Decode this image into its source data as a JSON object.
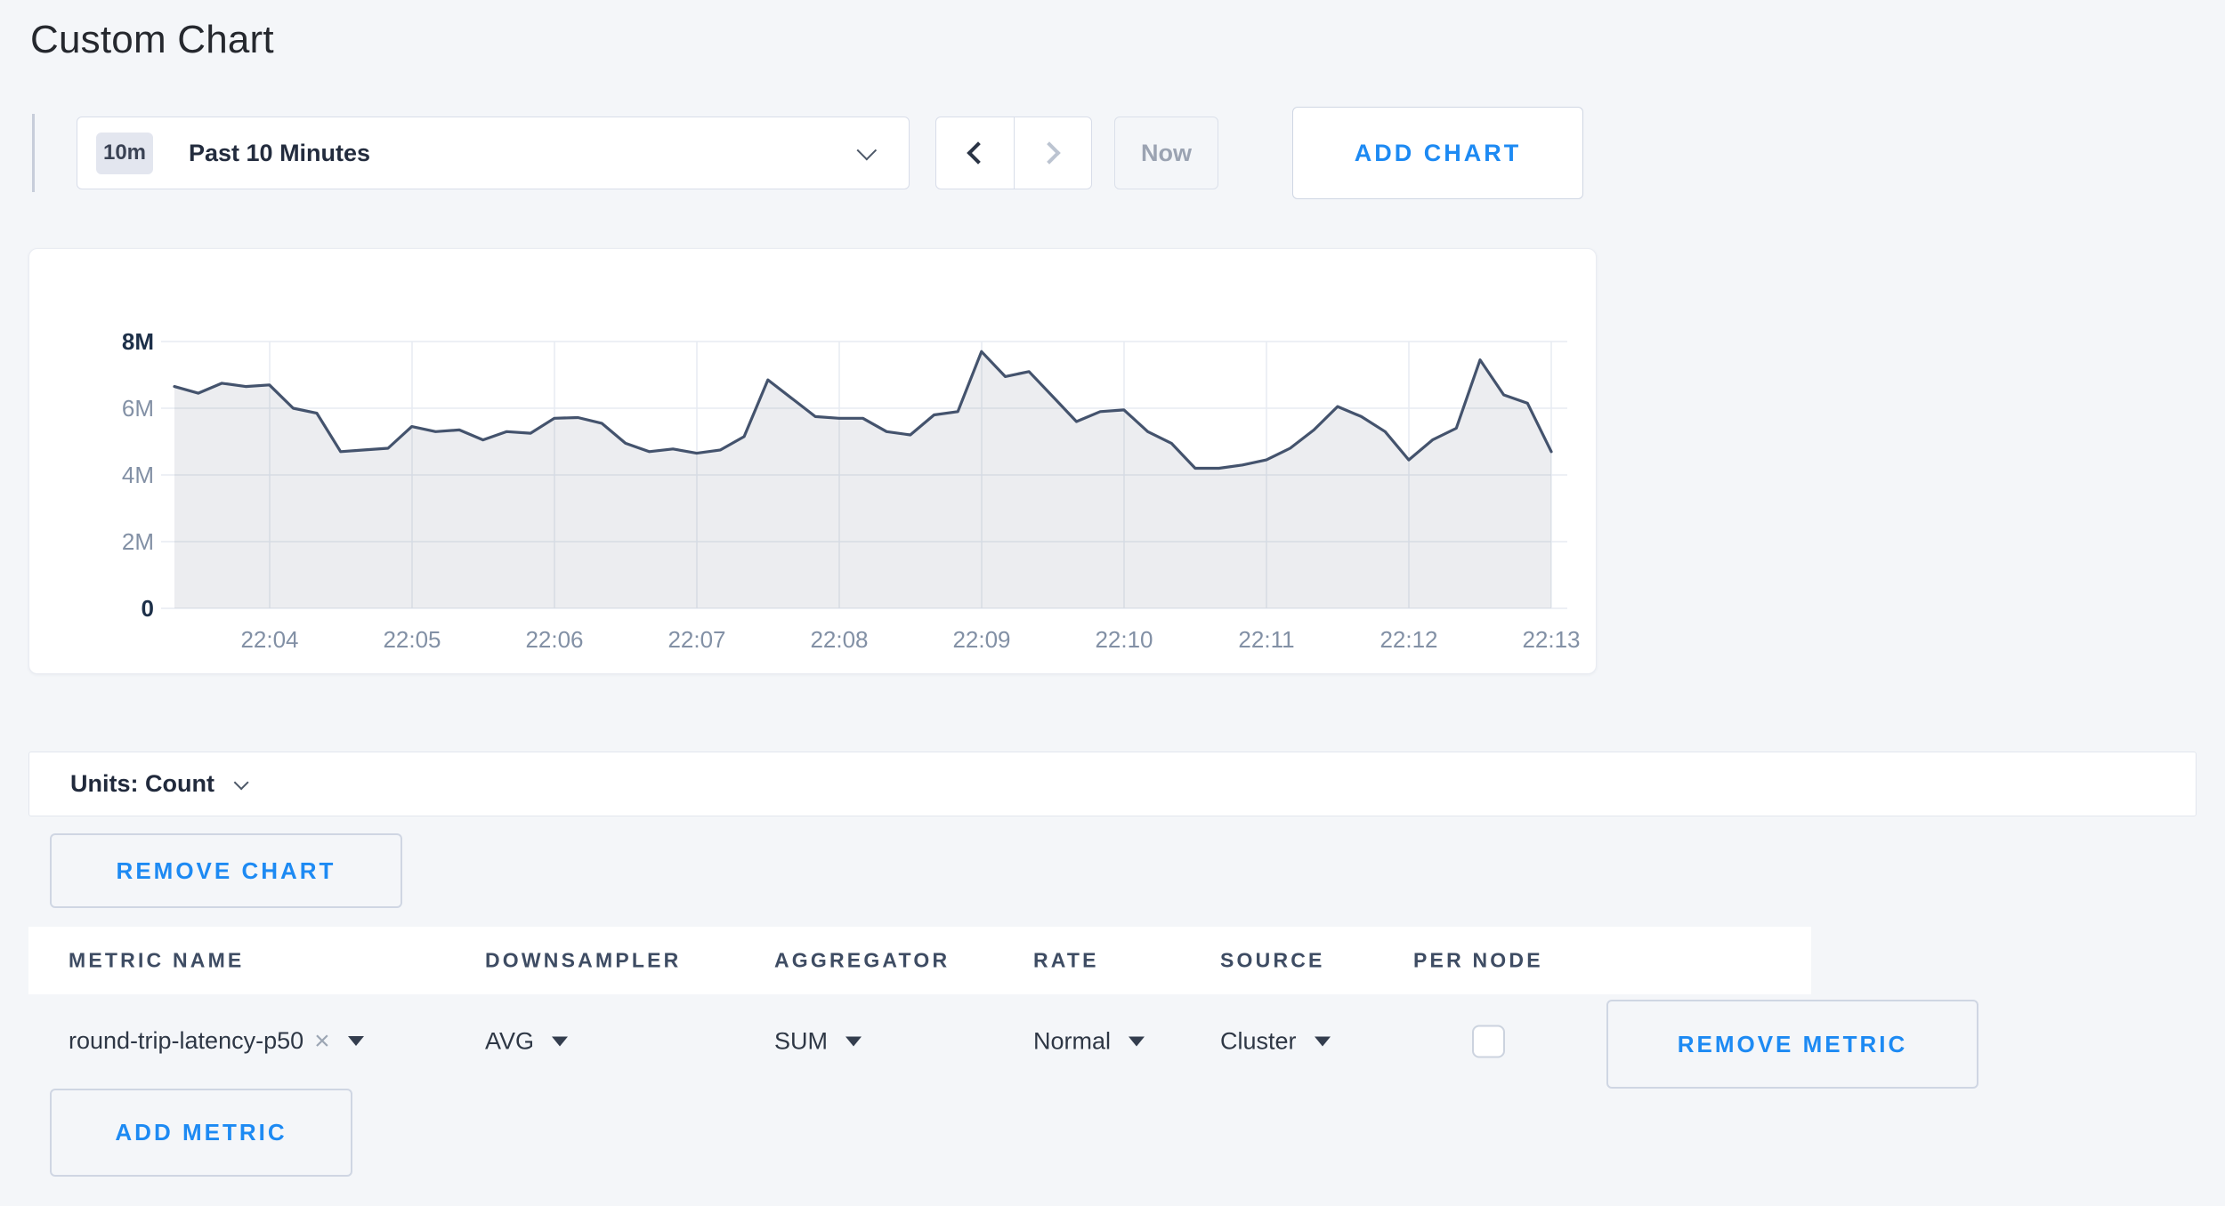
{
  "app": {
    "title": "Custom Chart"
  },
  "toolbar": {
    "time_range_badge": "10m",
    "time_range_label": "Past 10 Minutes",
    "prev_button_icon": "chevron-left",
    "next_button_icon": "chevron-right",
    "now_button_label": "Now",
    "add_chart_label": "ADD CHART"
  },
  "chart_data": {
    "type": "area",
    "series_name": "round-trip-latency-p50",
    "title": "",
    "xlabel": "",
    "ylabel": "Count",
    "ylim": [
      0,
      8000000
    ],
    "grid": true,
    "legend": "none",
    "line_color": "#44536d",
    "fill_color": "rgba(68,83,109,0.10)",
    "axis_label_color": "#8290a5",
    "axis_label_strong_color": "#1d3049",
    "y_ticks": [
      "0",
      "2M",
      "4M",
      "6M",
      "8M"
    ],
    "x_ticks": [
      "22:04",
      "22:05",
      "22:06",
      "22:07",
      "22:08",
      "22:09",
      "22:10",
      "22:11",
      "22:12",
      "22:13"
    ],
    "x": [
      "22:03:20",
      "22:03:30",
      "22:03:40",
      "22:03:50",
      "22:04:00",
      "22:04:10",
      "22:04:20",
      "22:04:30",
      "22:04:40",
      "22:04:50",
      "22:05:00",
      "22:05:10",
      "22:05:20",
      "22:05:30",
      "22:05:40",
      "22:05:50",
      "22:06:00",
      "22:06:10",
      "22:06:20",
      "22:06:30",
      "22:06:40",
      "22:06:50",
      "22:07:00",
      "22:07:10",
      "22:07:20",
      "22:07:30",
      "22:07:40",
      "22:07:50",
      "22:08:00",
      "22:08:10",
      "22:08:20",
      "22:08:30",
      "22:08:40",
      "22:08:50",
      "22:09:00",
      "22:09:10",
      "22:09:20",
      "22:09:30",
      "22:09:40",
      "22:09:50",
      "22:10:00",
      "22:10:10",
      "22:10:20",
      "22:10:30",
      "22:10:40",
      "22:10:50",
      "22:11:00",
      "22:11:10",
      "22:11:20",
      "22:11:30",
      "22:11:40",
      "22:11:50",
      "22:12:00",
      "22:12:10",
      "22:12:20",
      "22:12:30",
      "22:12:40",
      "22:12:50",
      "22:13:00"
    ],
    "values": [
      6650000,
      6450000,
      6750000,
      6650000,
      6700000,
      6000000,
      5850000,
      4700000,
      4750000,
      4800000,
      5450000,
      5300000,
      5350000,
      5050000,
      5300000,
      5250000,
      5700000,
      5720000,
      5550000,
      4950000,
      4700000,
      4780000,
      4650000,
      4750000,
      5150000,
      6850000,
      6300000,
      5750000,
      5700000,
      5700000,
      5300000,
      5200000,
      5800000,
      5900000,
      7700000,
      6950000,
      7100000,
      6350000,
      5600000,
      5900000,
      5950000,
      5300000,
      4950000,
      4200000,
      4200000,
      4300000,
      4450000,
      4800000,
      5350000,
      6050000,
      5750000,
      5300000,
      4450000,
      5050000,
      5400000,
      7450000,
      6400000,
      6150000,
      4700000
    ]
  },
  "units_bar": {
    "label": "Units: Count"
  },
  "actions": {
    "remove_chart_label": "REMOVE CHART",
    "add_metric_label": "ADD METRIC"
  },
  "metrics_table": {
    "headers": [
      "METRIC NAME",
      "DOWNSAMPLER",
      "AGGREGATOR",
      "RATE",
      "SOURCE",
      "PER NODE"
    ],
    "rows": [
      {
        "metric_name": "round-trip-latency-p50",
        "downsampler": "AVG",
        "aggregator": "SUM",
        "rate": "Normal",
        "source": "Cluster",
        "per_node_checked": false,
        "remove_metric_label": "REMOVE METRIC"
      }
    ]
  }
}
